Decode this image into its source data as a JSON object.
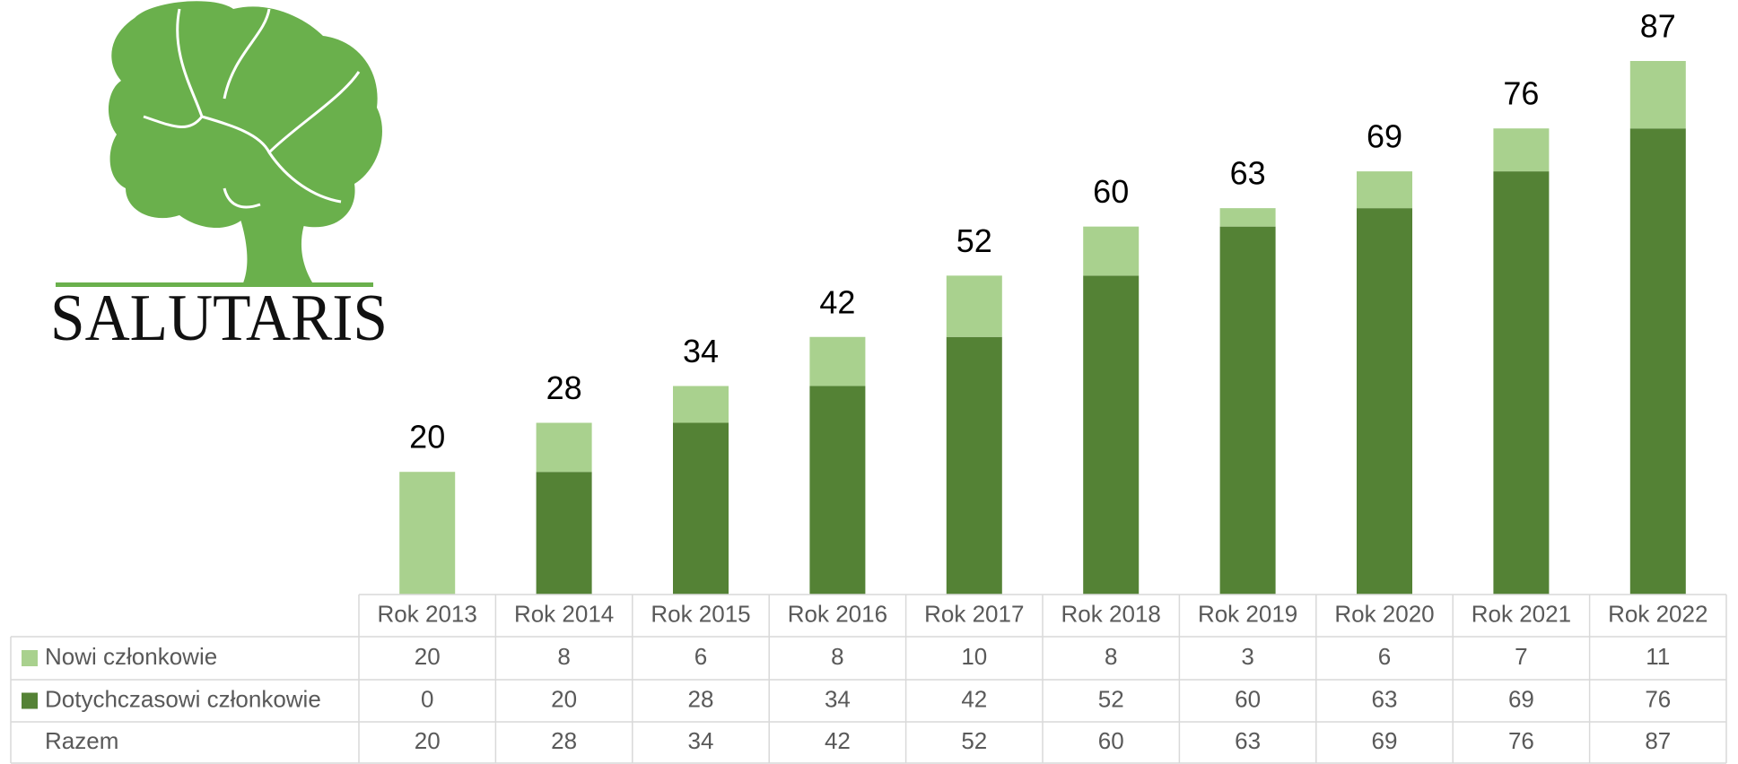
{
  "logo": "SALUTARIS",
  "chart_data": {
    "type": "stacked-bar",
    "categories": [
      "Rok 2013",
      "Rok 2014",
      "Rok 2015",
      "Rok 2016",
      "Rok 2017",
      "Rok 2018",
      "Rok 2019",
      "Rok 2020",
      "Rok 2021",
      "Rok 2022"
    ],
    "series": [
      {
        "name": "Nowi członkowie",
        "color": "#a9d18e",
        "values": [
          20,
          8,
          6,
          8,
          10,
          8,
          3,
          6,
          7,
          11
        ]
      },
      {
        "name": "Dotychczasowi członkowie",
        "color": "#548235",
        "values": [
          0,
          20,
          28,
          34,
          42,
          52,
          60,
          63,
          69,
          76
        ]
      }
    ],
    "totals": {
      "name": "Razem",
      "values": [
        20,
        28,
        34,
        42,
        52,
        60,
        63,
        69,
        76,
        87
      ]
    }
  }
}
